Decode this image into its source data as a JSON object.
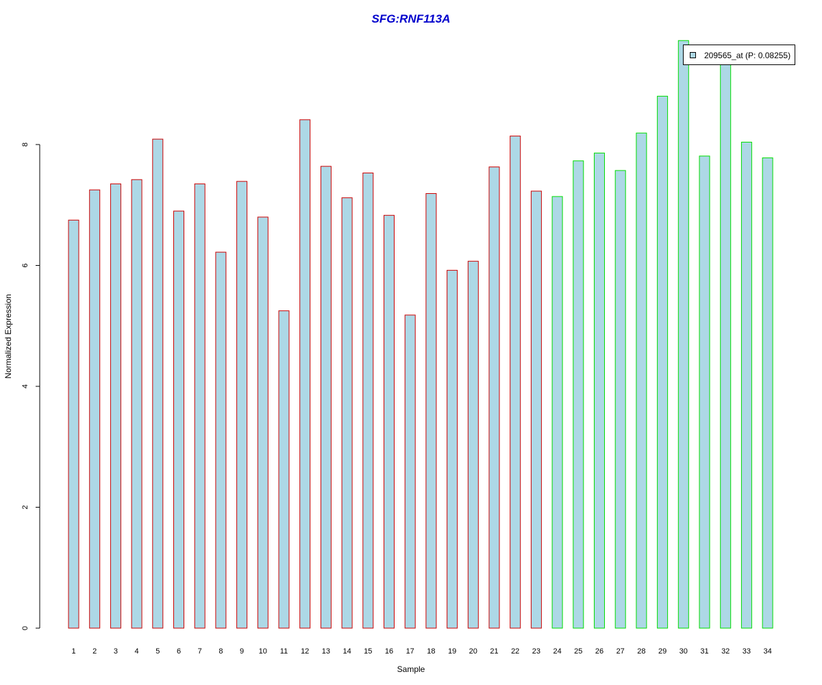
{
  "chart_data": {
    "type": "bar",
    "title": "SFG:RNF113A",
    "xlabel": "Sample",
    "ylabel": "Normalized Expression",
    "categories": [
      "1",
      "2",
      "3",
      "4",
      "5",
      "6",
      "7",
      "8",
      "9",
      "10",
      "11",
      "12",
      "13",
      "14",
      "15",
      "16",
      "17",
      "18",
      "19",
      "20",
      "21",
      "22",
      "23",
      "24",
      "25",
      "26",
      "27",
      "28",
      "29",
      "30",
      "31",
      "32",
      "33",
      "34"
    ],
    "series": [
      {
        "name": "209565_at (P: 0.08255)",
        "values": [
          6.75,
          7.25,
          7.35,
          7.42,
          8.09,
          6.9,
          7.35,
          6.22,
          7.39,
          6.8,
          5.25,
          8.41,
          7.64,
          7.12,
          7.53,
          6.83,
          5.18,
          7.19,
          5.92,
          6.07,
          7.63,
          8.14,
          7.23,
          7.14,
          7.73,
          7.86,
          7.57,
          8.19,
          8.8,
          9.72,
          7.81,
          9.45,
          8.04,
          7.78
        ]
      }
    ],
    "group_border_colors": [
      "#cc0000",
      "#cc0000",
      "#cc0000",
      "#cc0000",
      "#cc0000",
      "#cc0000",
      "#cc0000",
      "#cc0000",
      "#cc0000",
      "#cc0000",
      "#cc0000",
      "#cc0000",
      "#cc0000",
      "#cc0000",
      "#cc0000",
      "#cc0000",
      "#cc0000",
      "#cc0000",
      "#cc0000",
      "#cc0000",
      "#cc0000",
      "#cc0000",
      "#cc0000",
      "#00dd00",
      "#00dd00",
      "#00dd00",
      "#00dd00",
      "#00dd00",
      "#00dd00",
      "#00dd00",
      "#00dd00",
      "#00dd00",
      "#00dd00",
      "#00dd00"
    ],
    "bar_fill": "#add8e6",
    "title_color": "#0000cc",
    "yticks": [
      "0",
      "2",
      "4",
      "6",
      "8"
    ],
    "ylim": [
      0,
      9.72
    ],
    "grid": false,
    "legend_position": "top-right"
  }
}
